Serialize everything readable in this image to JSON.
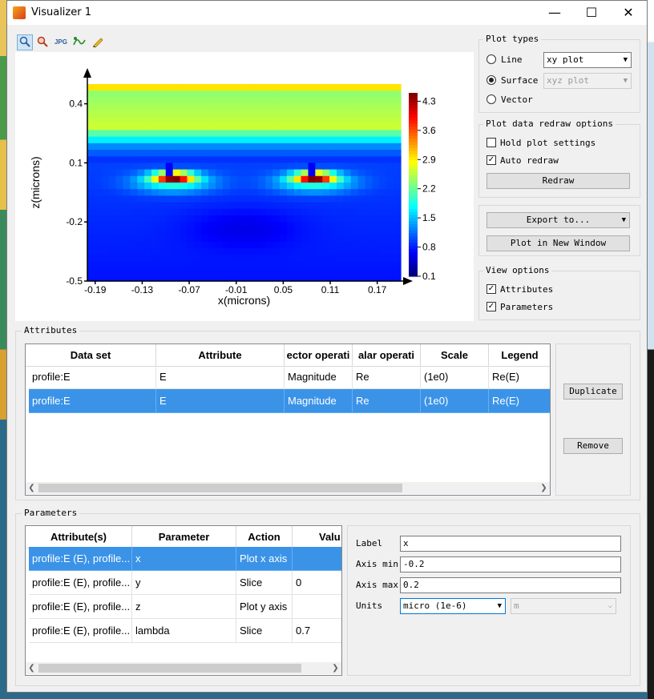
{
  "window": {
    "title": "Visualizer 1",
    "minimize": "—",
    "maximize": "☐",
    "close": "✕"
  },
  "toolbar": {
    "icons": [
      "zoom-icon",
      "pan-icon",
      "jpg-export-icon",
      "curve-icon",
      "pencil-icon"
    ],
    "jpg_label": "JPG"
  },
  "chart_data": {
    "type": "heatmap",
    "xlabel": "x(microns)",
    "ylabel": "z(microns)",
    "xticks": [
      "-0.19",
      "-0.13",
      "-0.07",
      "-0.01",
      "0.05",
      "0.11",
      "0.17"
    ],
    "yticks": [
      "0.4",
      "0.1",
      "-0.2",
      "-0.5"
    ],
    "colorbar_ticks": [
      "4.3",
      "3.6",
      "2.9",
      "2.2",
      "1.5",
      "0.8",
      "0.1"
    ],
    "xlim": [
      -0.2,
      0.2
    ],
    "ylim": [
      -0.5,
      0.5
    ],
    "clim": [
      0.1,
      4.5
    ],
    "colormap": "jet"
  },
  "plot_types": {
    "title": "Plot types",
    "line_label": "Line",
    "surface_label": "Surface",
    "vector_label": "Vector",
    "line_combo": "xy plot",
    "surface_combo": "xyz plot",
    "selected": "Surface"
  },
  "redraw_options": {
    "title": "Plot data redraw options",
    "hold_label": "Hold plot settings",
    "hold_checked": false,
    "auto_label": "Auto redraw",
    "auto_checked": true,
    "redraw_button": "Redraw"
  },
  "export": {
    "export_button": "Export to...",
    "new_window_button": "Plot in New Window"
  },
  "view_options": {
    "title": "View options",
    "attributes_label": "Attributes",
    "attributes_checked": true,
    "parameters_label": "Parameters",
    "parameters_checked": true
  },
  "attributes": {
    "title": "Attributes",
    "columns": [
      "Data set",
      "Attribute",
      "Vector operation",
      "Scalar operation",
      "Scale",
      "Legend"
    ],
    "columns_shown": [
      "Data set",
      "Attribute",
      "ector operati",
      "alar operati",
      "Scale",
      "Legend"
    ],
    "rows": [
      [
        "profile:E",
        "E",
        "Magnitude",
        "Re",
        "(1e0)",
        "Re(E)"
      ],
      [
        "profile:E",
        "E",
        "Magnitude",
        "Re",
        "(1e0)",
        "Re(E)"
      ]
    ],
    "selected_row": 1,
    "duplicate_button": "Duplicate",
    "remove_button": "Remove"
  },
  "parameters": {
    "title": "Parameters",
    "columns": [
      "Attribute(s)",
      "Parameter",
      "Action",
      "Value"
    ],
    "columns_shown": [
      "Attribute(s)",
      "Parameter",
      "Action",
      "Valu"
    ],
    "rows": [
      [
        "profile:E (E), profile...",
        "x",
        "Plot x axis",
        ""
      ],
      [
        "profile:E (E), profile...",
        "y",
        "Slice",
        "0"
      ],
      [
        "profile:E (E), profile...",
        "z",
        "Plot y axis",
        ""
      ],
      [
        "profile:E (E), profile...",
        "lambda",
        "Slice",
        "0.7"
      ]
    ],
    "selected_row": 0,
    "label_label": "Label",
    "label_value": "x",
    "axis_min_label": "Axis min",
    "axis_min_value": "-0.2",
    "axis_max_label": "Axis max",
    "axis_max_value": "0.2",
    "units_label": "Units",
    "units_value": "micro (1e-6)",
    "units_unit": "m"
  },
  "colors": {
    "selection": "#3b93e8",
    "accent": "#0078d7"
  }
}
